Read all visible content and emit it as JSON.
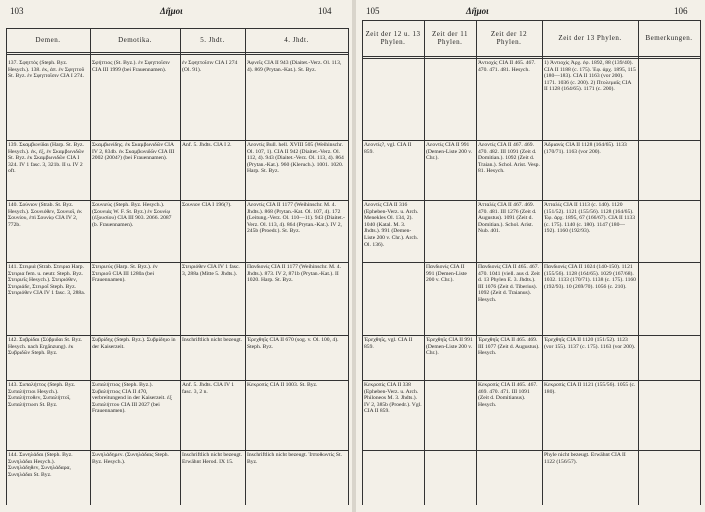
{
  "spread": {
    "left": {
      "header": {
        "page_left": "103",
        "title": "Δῆμοι",
        "page_right": "104"
      },
      "columns": [
        "Demen.",
        "Demotika.",
        "5. Jhdt.",
        "4. Jhdt."
      ],
      "rows": [
        [
          "137. Σφηττός (Steph. Byz. Hesych.). 138. ἐκ, ἀπ. ἐν Σφηττοῦ St. Byz. ἐν Σφηττοῖσιν CIA I 274.",
          "Σφήττιος (St. Byz.). ἐν Σφηττοῖσιν CIA III 1999 (bei Frauennamen).",
          "ἐν Σφηττοῖσιν CIA I 274 (Ol. 91).",
          "Ἀφνεῖς CIA II 943 (Diaitet.-Verz. Ol. 113, 4). 869 (Prytan.-Kat.). St. Byz."
        ],
        [
          "139. Σκαμβωνίδαι (Harp. St. Byz. Hesych.). ἐκ, ἐξ, ἐν Σκαμβωνιδῶν St. Byz. ἐκ Σκαμβωνιδῶν CIA I 324. IV 1 fasc. 3, 321b. II u. IV 2 oft.",
          "Σκαμβωνίδης. ἐκ Σκαμβωνιδῶν CIA IV 2, 834b. ἐκ Σκαμβωνιδῶν CIA III 2002 (2004?) (bei Frauennamen).",
          "Anf. 5. Jhdts. CIA I 2.",
          "Λεοντίς Bull. hell. XVIII 505 (Weihinschr. Ol. 107, 1). CIA II 942 (Diaitet.-Verz. Ol. 112, 4). 943 (Diaitet.-Verz. Ol. 113, 4). 864 (Prytan.-Kat.). 960 (Kleruch.). 1001. 1020. Harp. St. Byz."
        ],
        [
          "140. Σούνιον (Strab. St. Byz. Hesych.). Σουνιόθεν, Σουνιοῖ, ἐκ Σουνίου, ἐπὶ Σουνίῳ CIA IV 2, 772b.",
          "Σουνιεύς (Steph. Byz. Hesych.). (Σουνιάς W. F. St. Byz.) ἐν Σουνίῳ (ἐξουσίου) CIA III 903. 2066. 2087 (b. Frauennamen).",
          "Σουνιον CIA I 196(?).",
          "Λεοντίς CIA II 1177 (Weihinschr. M. 4. Jhdts.). 868 (Prytan.-Kat. Ol. 107, 4). 172 (Leitung.-Verz. Ol. 110—11). 943 (Diaitet.-Verz. Ol. 113, 4). 864 (Prytan.-Kat.). IV 2, 245b (Proedr.). St. Byz."
        ],
        [
          "141. Στειριά (Strab. Στειρια Harp. Στειρια fem. u. neutr. Steph. Byz. Στειριεῖς Hesych.). Στειριόθεν, Στειριάδε, Στειροῖ Steph. Byz. Στειριόθεν CIA IV 1 fasc. 3, 288a.",
          "Στειριεύς (Harp. St. Byz.). ἐν Στειριοῦ CIA III 1280a (bei Frauennamen).",
          "Στειριόθεν CIA IV 1 fasc. 3, 288a (Mitte 5. Jhdts.).",
          "Πανδιονίς CIA II 1177 (Weihinschr. M. 4. Jhdts.). 873. IV 2, 871b (Prytan.-Kat.). II 1020. Harp. St. Byz."
        ],
        [
          "142. Συβρίδαι (Σύβριδαι St. Byz. Hesych. nach Ergänzung). ἐκ Συβριδῶν Steph. Byz.",
          "Συβρίδης (Steph. Byz.). Συβρίδηιο in der Kaiserzeit.",
          "Inschriftlich nicht bezeugt.",
          "Ἐρεχθηΐς CIA II 670 (sog. v. Ol. 100, 4). Steph. Byz."
        ],
        [
          "143. Συπαλήττος (Steph. Byz. Συπαλήττιοι Hesych.). Συπαλήττοθεν, Συπαλήττοῖ, Συπαλήττωσι St. Byz.",
          "Συπαλήττιος (Steph. Byz.). Συβαλήττιος CIA II 470, verbreitungend in der Kaiserzeit. ἐξ Συπαλήττου CIA III 2027 (bei Frauennamen).",
          "Anf. 5. Jhdts. CIA IV 1 fasc. 3, 2 n.",
          "Κεκροπίς CIA II 1003. St. Byz."
        ],
        [
          "144. Συνηλάδαι (Steph. Byz. Συνηλάδαι Hesych.). Συνηλάδηθεν, Συνηλάδαρα, Συνηλάδαι St. Byz.",
          "Συνηλάδηρεν. (Συνηλάδαις Steph. Byz. Hesych.).",
          "Inschriftlich nicht bezeugt. Erwähnt Herod. IX 15.",
          "Inschriftlich nicht bezeugt. Ἱπποθωντίς St. Byz."
        ]
      ]
    },
    "right": {
      "header": {
        "page_left": "105",
        "title": "Δῆμοι",
        "page_right": "106"
      },
      "columns": [
        "Zeit der 12 u. 13 Phylen.",
        "Zeit der 11 Phylen.",
        "Zeit der 12 Phylen.",
        "Zeit der 13 Phylen.",
        "Bemerkungen."
      ],
      "rows": [
        [
          "",
          "",
          "Ἀντιοχίς CIA II 465. 467. 470. 471. 481. Hesych.",
          "1) Ἀντιοχίς Ἀρχ. ἐφ. 1892, 88 (139/40). CIA II 1188 (c. 175). Ἐφ. ἀρχ. 1895, 115 (180—183). CIA II 1163 (vor 200). 1171. 1036 (c. 200). 2) Πτολεμαΐς CIA II 1128 (164/65). 1171 (c. 200).",
          ""
        ],
        [
          "Λεοντίς?, vgl. CIA II 859.",
          "Λεοντίς CIA II 991 (Demen-Liste 200 v. Chr.).",
          "Λεοντίς CIA II 467. 469. 470. 482. III 1091 (Zeit d. Domitian.). 1092 (Zeit d. Traian.). Schol. Arist. Vesp. 81. Hesych.",
          "Ἀδριανίς CIA II 1128 (164/65). 1133 (170/71). 1163 (vor 200).",
          ""
        ],
        [
          "Λεοντίς CIA II 316 (Epheben-Verz. u. Arch. Menekles Ol. 134, 2). 1040 (Katal. M. 3. Jhdts.). 991 (Demen-Liste 200 v. Chr.). Arch. Ol. 136).",
          "",
          "Ἀτταλίς CIA II 467. 469. 470. 481. III 1276 (Zeit d. Augustus). 1091 (Zeit d. Domitian.). Schol. Arist. Nub. 401.",
          "Ἀτταλίς CIA II 1113 (c. 140). 1120 (151/52). 1121 (155/56). 1128 (164/65). Ἐφ. ἀρχ. 1895, 67 (166/67). CIA II 1133 (c. 175). 1140 (c. 180). 1147 (180—192). 1160 (192/93).",
          ""
        ],
        [
          "",
          "Πανδιονίς CIA II 991 (Demen-Liste 200 v. Chr.).",
          "Πανδιονίς CIA II 465. 467. 470. 1041 (viell. aus d. Zeit d. 13 Phylen E. 3. Jhdts.). III 1076 (Zeit d. Tiberius). 1092 (Zeit d. Traianus). Hesych.",
          "Πανδιονίς CIA II 1024 (140-150). 1121 (155/56). 1128 (164/65). 1029 (167/68). 1032. 1133 (170/71). 1138 (c. 175). 1160 (192/93). 10 (269/70). 1056 (c. 210).",
          ""
        ],
        [
          "Ἐρεχθηΐς, vgl. CIA II 859.",
          "Ἐρεχθηΐς CIA II 991 (Demen-Liste 200 v. Chr.).",
          "Ἐρεχθηΐς CIA II 465. 469. III 1077 (Zeit d. Augustus). Hesych.",
          "Ἐρεχθηΐς CIA II 1120 (151/52). 1123 (vor 155). 1137 (c. 175). 1163 (vor 200).",
          ""
        ],
        [
          "Κεκροπίς CIA II 338 (Epheben-Verz. u. Arch. Philoneos M. 3. Jhdts.). IV 2, 385b (Proedr.). Vgl. CIA II 859.",
          "",
          "Κεκροπίς CIA II 465. 467. 469. 470. 471. III 1091 (Zeit d. Domitianus). Hesych.",
          "Κεκροπίς CIA II 1121 (155/56). 1055 (c. 180).",
          ""
        ],
        [
          "",
          "",
          "",
          "Phyle nicht bezeugt. Erwähnt CIA II 1122 (156/57).",
          ""
        ]
      ]
    }
  }
}
